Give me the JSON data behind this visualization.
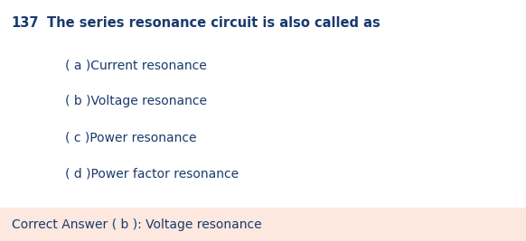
{
  "question_number": "137",
  "question_text": "The series resonance circuit is also called as",
  "options": [
    "( a )Current resonance",
    "( b )Voltage resonance",
    "( c )Power resonance",
    "( d )Power factor resonance"
  ],
  "correct_answer_text": "Correct Answer ( b ): Voltage resonance",
  "bg_color": "#ffffff",
  "answer_bg_color": "#fce8df",
  "question_color": "#1a3a6e",
  "option_color": "#1a3a6e",
  "answer_color": "#1a3a6e",
  "question_fontsize": 10.5,
  "option_fontsize": 10,
  "answer_fontsize": 10,
  "fig_width": 5.82,
  "fig_height": 2.67,
  "dpi": 100
}
